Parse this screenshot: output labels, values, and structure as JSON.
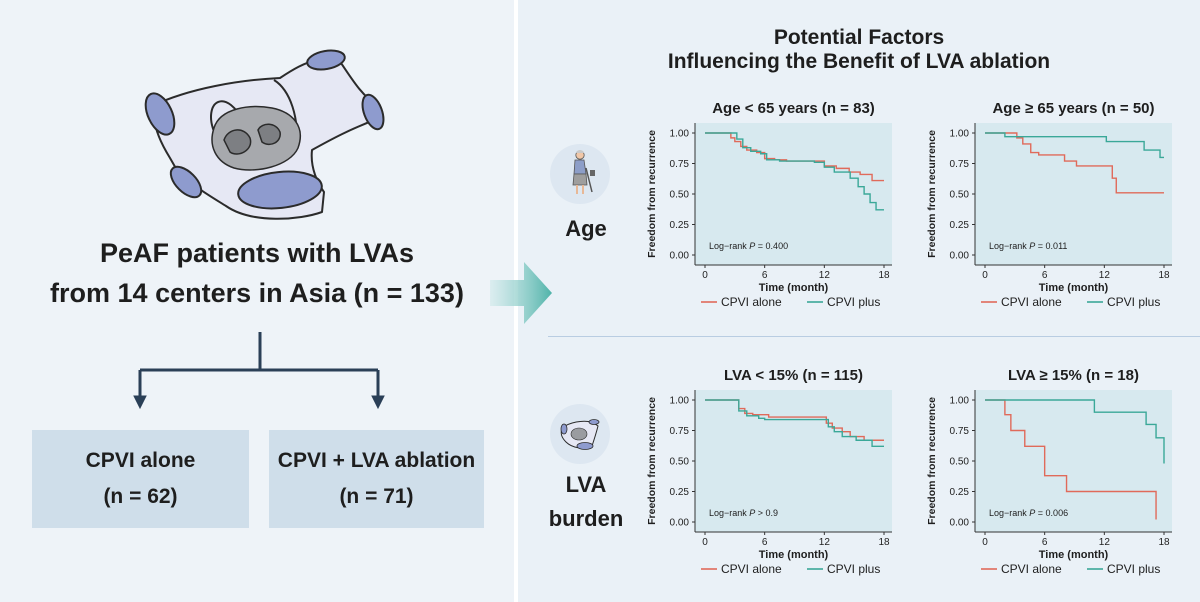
{
  "left": {
    "title_line1": "PeAF patients with LVAs",
    "title_line2": "from 14 centers in Asia (n = 133)",
    "box_left": {
      "label": "CPVI alone",
      "n": "(n = 62)"
    },
    "box_right": {
      "label": "CPVI + LVA ablation",
      "n": "(n = 71)"
    }
  },
  "right": {
    "title_line1": "Potential Factors",
    "title_line2": "Influencing the Benefit of LVA ablation",
    "row_age_label": "Age",
    "row_lva_label_line1": "LVA",
    "row_lva_label_line2": "burden"
  },
  "colors": {
    "cpvi_alone": "#e06a5a",
    "cpvi_plus": "#3aa898",
    "plot_bg": "#d7e9ef",
    "box_bg": "#cfdeea",
    "heart_fill": "#e6e8f4",
    "heart_vein": "#8e9bce"
  },
  "chart_data": [
    {
      "type": "line",
      "title": "Age < 65 years (n = 83)",
      "xlabel": "Time (month)",
      "ylabel": "Freedom from recurrence",
      "xlim": [
        0,
        18
      ],
      "ylim": [
        0,
        1
      ],
      "xticks": [
        "0",
        "6",
        "12",
        "18"
      ],
      "yticks": [
        "0.00",
        "0.25",
        "0.50",
        "0.75",
        "1.00"
      ],
      "annotation_prefix": "Log−rank ",
      "annotation_p": "P",
      "annotation_suffix": " = 0.400",
      "legend": [
        "CPVI alone",
        "CPVI plus"
      ],
      "series": [
        {
          "name": "CPVI alone",
          "color": "#e06a5a",
          "x": [
            0,
            1.8,
            2.6,
            3.0,
            3.6,
            4.2,
            5.2,
            6.0,
            7.0,
            8.2,
            11.2,
            12.0,
            13.2,
            14.5,
            15.6,
            16.8,
            18.0
          ],
          "y": [
            1,
            1,
            0.96,
            0.93,
            0.89,
            0.86,
            0.84,
            0.79,
            0.78,
            0.77,
            0.77,
            0.73,
            0.71,
            0.68,
            0.66,
            0.61,
            0.61
          ]
        },
        {
          "name": "CPVI plus",
          "color": "#3aa898",
          "x": [
            0,
            1.6,
            3.2,
            3.8,
            4.6,
            5.6,
            6.2,
            7.5,
            11.0,
            12.0,
            13.0,
            14.6,
            15.4,
            16.0,
            16.6,
            17.2,
            18.0
          ],
          "y": [
            1,
            1,
            0.95,
            0.88,
            0.85,
            0.83,
            0.78,
            0.77,
            0.76,
            0.72,
            0.68,
            0.63,
            0.56,
            0.5,
            0.43,
            0.37,
            0.37
          ]
        }
      ]
    },
    {
      "type": "line",
      "title": "Age ≥ 65 years (n = 50)",
      "xlabel": "Time (month)",
      "ylabel": "Freedom from recurrence",
      "xlim": [
        0,
        18
      ],
      "ylim": [
        0,
        1
      ],
      "xticks": [
        "0",
        "6",
        "12",
        "18"
      ],
      "yticks": [
        "0.00",
        "0.25",
        "0.50",
        "0.75",
        "1.00"
      ],
      "annotation_prefix": "Log−rank ",
      "annotation_p": "P",
      "annotation_suffix": " = 0.011",
      "legend": [
        "CPVI alone",
        "CPVI plus"
      ],
      "series": [
        {
          "name": "CPVI alone",
          "color": "#e06a5a",
          "x": [
            0,
            2.6,
            3.2,
            3.8,
            4.6,
            5.4,
            6.0,
            8.0,
            9.2,
            12.0,
            12.8,
            13.2,
            18.0
          ],
          "y": [
            1,
            1,
            0.96,
            0.91,
            0.84,
            0.82,
            0.82,
            0.77,
            0.73,
            0.73,
            0.63,
            0.51,
            0.51
          ]
        },
        {
          "name": "CPVI plus",
          "color": "#3aa898",
          "x": [
            0,
            1.6,
            2.0,
            11.8,
            12.2,
            15.0,
            16.0,
            17.6,
            18.0
          ],
          "y": [
            1,
            1,
            0.97,
            0.97,
            0.93,
            0.93,
            0.86,
            0.8,
            0.8
          ]
        }
      ]
    },
    {
      "type": "line",
      "title": "LVA < 15% (n = 115)",
      "xlabel": "Time (month)",
      "ylabel": "Freedom from recurrence",
      "xlim": [
        0,
        18
      ],
      "ylim": [
        0,
        1
      ],
      "xticks": [
        "0",
        "6",
        "12",
        "18"
      ],
      "yticks": [
        "0.00",
        "0.25",
        "0.50",
        "0.75",
        "1.00"
      ],
      "annotation_prefix": "Log−rank ",
      "annotation_p": "P",
      "annotation_suffix": " > 0.9",
      "legend": [
        "CPVI alone",
        "CPVI plus"
      ],
      "series": [
        {
          "name": "CPVI alone",
          "color": "#e06a5a",
          "x": [
            0,
            3.0,
            3.4,
            4.0,
            4.8,
            6.4,
            11.4,
            12.2,
            12.8,
            13.8,
            14.6,
            16.0,
            18.0
          ],
          "y": [
            1,
            1,
            0.93,
            0.89,
            0.88,
            0.86,
            0.86,
            0.81,
            0.77,
            0.74,
            0.7,
            0.67,
            0.67
          ]
        },
        {
          "name": "CPVI plus",
          "color": "#3aa898",
          "x": [
            0,
            3.0,
            3.4,
            4.2,
            5.4,
            6.0,
            11.6,
            12.4,
            13.0,
            13.8,
            15.2,
            16.8,
            18.0
          ],
          "y": [
            1,
            1,
            0.91,
            0.87,
            0.85,
            0.84,
            0.84,
            0.78,
            0.74,
            0.7,
            0.67,
            0.62,
            0.62
          ]
        }
      ]
    },
    {
      "type": "line",
      "title": "LVA ≥ 15% (n = 18)",
      "xlabel": "Time (month)",
      "ylabel": "Freedom from recurrence",
      "xlim": [
        0,
        18
      ],
      "ylim": [
        0,
        1
      ],
      "xticks": [
        "0",
        "6",
        "12",
        "18"
      ],
      "yticks": [
        "0.00",
        "0.25",
        "0.50",
        "0.75",
        "1.00"
      ],
      "annotation_prefix": "Log−rank ",
      "annotation_p": "P",
      "annotation_suffix": " = 0.006",
      "legend": [
        "CPVI alone",
        "CPVI plus"
      ],
      "series": [
        {
          "name": "CPVI alone",
          "color": "#e06a5a",
          "x": [
            0,
            1.6,
            2.0,
            2.6,
            4.0,
            6.0,
            8.2,
            16.6,
            17.2
          ],
          "y": [
            1,
            1,
            0.88,
            0.75,
            0.62,
            0.38,
            0.25,
            0.25,
            0.02
          ]
        },
        {
          "name": "CPVI plus",
          "color": "#3aa898",
          "x": [
            0,
            6.8,
            11.0,
            16.2,
            17.2,
            18.0
          ],
          "y": [
            1,
            1,
            0.9,
            0.8,
            0.69,
            0.48
          ]
        }
      ]
    }
  ]
}
